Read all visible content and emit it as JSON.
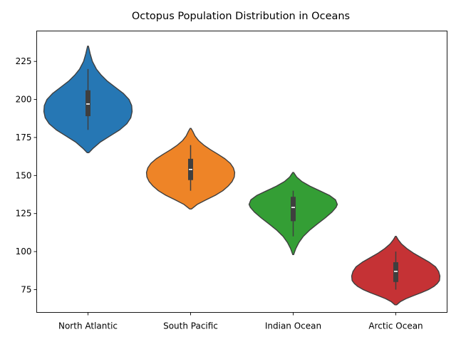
{
  "chart_data": {
    "type": "violin",
    "title": "Octopus Population Distribution in Oceans",
    "xlabel": "",
    "ylabel": "",
    "categories": [
      "North Atlantic",
      "South Pacific",
      "Indian Ocean",
      "Arctic Ocean"
    ],
    "ylim": [
      60,
      245
    ],
    "yticks": [
      75,
      100,
      125,
      150,
      175,
      200,
      225
    ],
    "grid": false,
    "legend": "none",
    "violins": [
      {
        "category": "North Atlantic",
        "color": "#2677b4",
        "kde_min": 165,
        "kde_max": 235,
        "whisker_low": 180,
        "q1": 189,
        "median": 197,
        "q3": 206,
        "whisker_high": 220,
        "profile": [
          [
            165,
            0.02
          ],
          [
            168,
            0.12
          ],
          [
            172,
            0.28
          ],
          [
            176,
            0.5
          ],
          [
            180,
            0.72
          ],
          [
            184,
            0.88
          ],
          [
            188,
            0.97
          ],
          [
            192,
            1.0
          ],
          [
            196,
            0.99
          ],
          [
            200,
            0.93
          ],
          [
            204,
            0.8
          ],
          [
            208,
            0.62
          ],
          [
            212,
            0.44
          ],
          [
            216,
            0.3
          ],
          [
            220,
            0.19
          ],
          [
            225,
            0.1
          ],
          [
            230,
            0.05
          ],
          [
            235,
            0.01
          ]
        ]
      },
      {
        "category": "South Pacific",
        "color": "#ee8427",
        "kde_min": 128,
        "kde_max": 181,
        "whisker_low": 140,
        "q1": 147,
        "median": 154,
        "q3": 161,
        "whisker_high": 170,
        "profile": [
          [
            128,
            0.02
          ],
          [
            131,
            0.15
          ],
          [
            134,
            0.35
          ],
          [
            137,
            0.56
          ],
          [
            140,
            0.73
          ],
          [
            143,
            0.85
          ],
          [
            146,
            0.94
          ],
          [
            149,
            0.99
          ],
          [
            152,
            1.0
          ],
          [
            155,
            0.97
          ],
          [
            158,
            0.9
          ],
          [
            161,
            0.78
          ],
          [
            164,
            0.62
          ],
          [
            167,
            0.45
          ],
          [
            170,
            0.3
          ],
          [
            173,
            0.18
          ],
          [
            176,
            0.1
          ],
          [
            179,
            0.05
          ],
          [
            181,
            0.01
          ]
        ]
      },
      {
        "category": "Indian Ocean",
        "color": "#349e35",
        "kde_min": 98,
        "kde_max": 152,
        "whisker_low": 110,
        "q1": 120,
        "median": 129,
        "q3": 136,
        "whisker_high": 140,
        "profile": [
          [
            98,
            0.01
          ],
          [
            102,
            0.06
          ],
          [
            106,
            0.13
          ],
          [
            110,
            0.23
          ],
          [
            114,
            0.37
          ],
          [
            118,
            0.54
          ],
          [
            122,
            0.72
          ],
          [
            126,
            0.88
          ],
          [
            129,
            0.97
          ],
          [
            131,
            1.0
          ],
          [
            134,
            0.96
          ],
          [
            137,
            0.82
          ],
          [
            140,
            0.6
          ],
          [
            143,
            0.38
          ],
          [
            146,
            0.2
          ],
          [
            149,
            0.08
          ],
          [
            152,
            0.01
          ]
        ]
      },
      {
        "category": "Arctic Ocean",
        "color": "#c53235",
        "kde_min": 65,
        "kde_max": 110,
        "whisker_low": 75,
        "q1": 80,
        "median": 87,
        "q3": 93,
        "whisker_high": 100,
        "profile": [
          [
            65,
            0.02
          ],
          [
            67,
            0.1
          ],
          [
            69,
            0.23
          ],
          [
            71,
            0.4
          ],
          [
            73,
            0.58
          ],
          [
            75,
            0.74
          ],
          [
            77,
            0.86
          ],
          [
            79,
            0.94
          ],
          [
            81,
            0.99
          ],
          [
            84,
            1.0
          ],
          [
            87,
            0.97
          ],
          [
            90,
            0.9
          ],
          [
            93,
            0.76
          ],
          [
            96,
            0.58
          ],
          [
            99,
            0.4
          ],
          [
            102,
            0.25
          ],
          [
            105,
            0.13
          ],
          [
            108,
            0.05
          ],
          [
            110,
            0.01
          ]
        ]
      }
    ]
  }
}
